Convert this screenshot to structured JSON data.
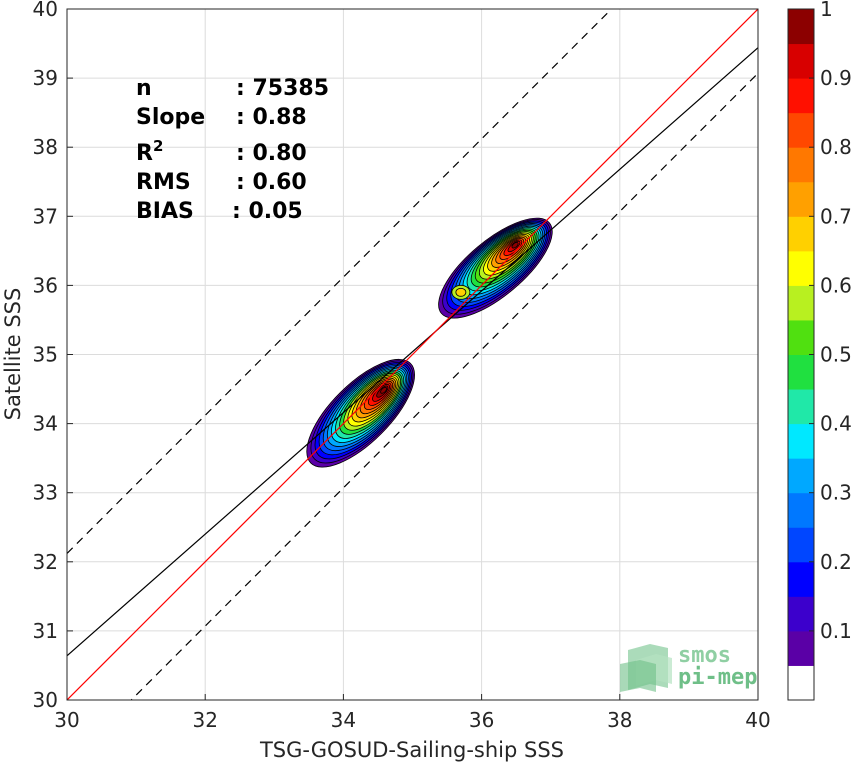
{
  "chart_data": {
    "type": "scatter",
    "subtype": "2D density contour (filled) with colorbar",
    "xlabel": "TSG-GOSUD-Sailing-ship SSS",
    "ylabel": "Satellite SSS",
    "xlim": [
      30,
      40
    ],
    "ylim": [
      30,
      40
    ],
    "xticks": [
      "30",
      "32",
      "34",
      "36",
      "38",
      "40"
    ],
    "yticks": [
      "30",
      "31",
      "32",
      "33",
      "34",
      "35",
      "36",
      "37",
      "38",
      "39",
      "40"
    ],
    "grid": true,
    "stats": [
      {
        "label": "n",
        "value": ": 75385"
      },
      {
        "label": "Slope",
        "value": ": 0.88"
      },
      {
        "label": "R",
        "superscript": "2",
        "value": ": 0.80"
      },
      {
        "label": "RMS",
        "value": ": 0.60"
      },
      {
        "label": "BIAS",
        "value": ": 0.05"
      }
    ],
    "lines": {
      "identity": {
        "slope": 1,
        "intercept": 0,
        "color": "#ff0000"
      },
      "regression": {
        "slope": 0.88,
        "x0": 30,
        "y0": 30.64,
        "color": "#000000"
      },
      "upper_dashed": {
        "slope": 1,
        "intercept": 2.12,
        "color": "#000000"
      },
      "lower_dashed": {
        "slope": 1,
        "intercept": -0.93,
        "color": "#000000"
      }
    },
    "density_peaks": [
      {
        "x": 34.6,
        "y": 34.5,
        "value": 1.0
      },
      {
        "x": 36.5,
        "y": 36.6,
        "value": 0.97
      },
      {
        "x": 35.7,
        "y": 35.9,
        "value": 0.65
      }
    ],
    "colorbar": {
      "min": 0,
      "max": 1,
      "ticks": [
        "0.1",
        "0.2",
        "0.3",
        "0.4",
        "0.5",
        "0.6",
        "0.7",
        "0.8",
        "0.9",
        "1"
      ],
      "colors": [
        "#ffffff",
        "#5a00a6",
        "#3c00cc",
        "#0000ff",
        "#0046ff",
        "#0078ff",
        "#00a8ff",
        "#00e8ff",
        "#20e8a8",
        "#20e040",
        "#50e010",
        "#b8f020",
        "#ffff00",
        "#ffd000",
        "#ffa000",
        "#ff7800",
        "#ff4800",
        "#ff1000",
        "#d80000",
        "#8c0000"
      ]
    }
  },
  "logo": {
    "line1": "smos",
    "line2": "pi-mep"
  }
}
